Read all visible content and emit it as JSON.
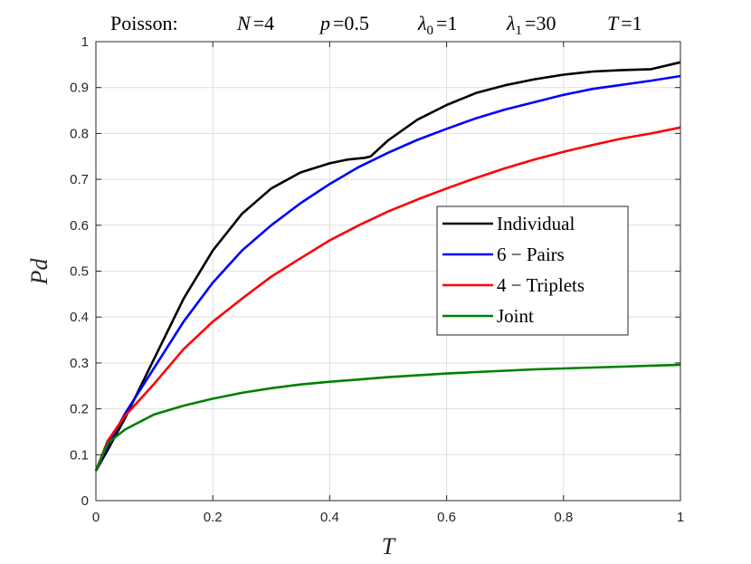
{
  "chart_data": {
    "type": "line",
    "title": "Poisson:",
    "title_params": [
      {
        "symbol": "N",
        "subscript": "",
        "value": "4"
      },
      {
        "symbol": "p",
        "subscript": "",
        "value": "0.5"
      },
      {
        "symbol": "λ",
        "subscript": "0",
        "value": "1"
      },
      {
        "symbol": "λ",
        "subscript": "1",
        "value": "30"
      },
      {
        "symbol": "T",
        "subscript": "",
        "value": "1"
      }
    ],
    "xlabel": "T",
    "ylabel": "Pd",
    "xlim": [
      0,
      1
    ],
    "ylim": [
      0,
      1
    ],
    "xticks": [
      0,
      0.2,
      0.4,
      0.6,
      0.8,
      1
    ],
    "xtick_labels": [
      "0",
      "0.2",
      "0.4",
      "0.6",
      "0.8",
      "1"
    ],
    "yticks": [
      0,
      0.1,
      0.2,
      0.3,
      0.4,
      0.5,
      0.6,
      0.7,
      0.8,
      0.9,
      1
    ],
    "ytick_labels": [
      "0",
      "0.1",
      "0.2",
      "0.3",
      "0.4",
      "0.5",
      "0.6",
      "0.7",
      "0.8",
      "0.9",
      "1"
    ],
    "grid": true,
    "legend_position": "center-right",
    "series": [
      {
        "name": "Individual",
        "color": "#000000",
        "x": [
          0,
          0.02,
          0.05,
          0.1,
          0.15,
          0.2,
          0.25,
          0.3,
          0.35,
          0.4,
          0.43,
          0.46,
          0.47,
          0.5,
          0.55,
          0.6,
          0.65,
          0.7,
          0.75,
          0.8,
          0.85,
          0.9,
          0.95,
          1.0
        ],
        "y": [
          0.065,
          0.11,
          0.18,
          0.31,
          0.44,
          0.545,
          0.625,
          0.68,
          0.715,
          0.735,
          0.743,
          0.747,
          0.75,
          0.785,
          0.83,
          0.862,
          0.888,
          0.905,
          0.918,
          0.928,
          0.935,
          0.938,
          0.94,
          0.955
        ]
      },
      {
        "name": "6 − Pairs",
        "color": "#0000ff",
        "x": [
          0,
          0.02,
          0.05,
          0.1,
          0.15,
          0.2,
          0.25,
          0.3,
          0.35,
          0.4,
          0.45,
          0.5,
          0.55,
          0.6,
          0.65,
          0.7,
          0.75,
          0.8,
          0.85,
          0.9,
          0.95,
          1.0
        ],
        "y": [
          0.065,
          0.12,
          0.19,
          0.29,
          0.39,
          0.475,
          0.545,
          0.6,
          0.648,
          0.69,
          0.727,
          0.758,
          0.786,
          0.81,
          0.833,
          0.852,
          0.868,
          0.884,
          0.897,
          0.906,
          0.915,
          0.925
        ]
      },
      {
        "name": "4 − Triplets",
        "color": "#ff0000",
        "x": [
          0,
          0.02,
          0.05,
          0.1,
          0.15,
          0.2,
          0.25,
          0.3,
          0.35,
          0.4,
          0.45,
          0.5,
          0.55,
          0.6,
          0.65,
          0.7,
          0.75,
          0.8,
          0.85,
          0.9,
          0.95,
          1.0
        ],
        "y": [
          0.065,
          0.13,
          0.185,
          0.255,
          0.33,
          0.39,
          0.44,
          0.488,
          0.528,
          0.567,
          0.6,
          0.63,
          0.656,
          0.68,
          0.703,
          0.724,
          0.743,
          0.76,
          0.775,
          0.789,
          0.8,
          0.813
        ]
      },
      {
        "name": "Joint",
        "color": "#008000",
        "x": [
          0,
          0.02,
          0.05,
          0.1,
          0.15,
          0.2,
          0.25,
          0.3,
          0.35,
          0.4,
          0.45,
          0.5,
          0.55,
          0.6,
          0.65,
          0.7,
          0.75,
          0.8,
          0.85,
          0.9,
          0.95,
          1.0
        ],
        "y": [
          0.065,
          0.125,
          0.155,
          0.188,
          0.207,
          0.222,
          0.235,
          0.245,
          0.253,
          0.259,
          0.264,
          0.269,
          0.273,
          0.277,
          0.28,
          0.283,
          0.286,
          0.288,
          0.29,
          0.292,
          0.294,
          0.296
        ]
      }
    ]
  }
}
